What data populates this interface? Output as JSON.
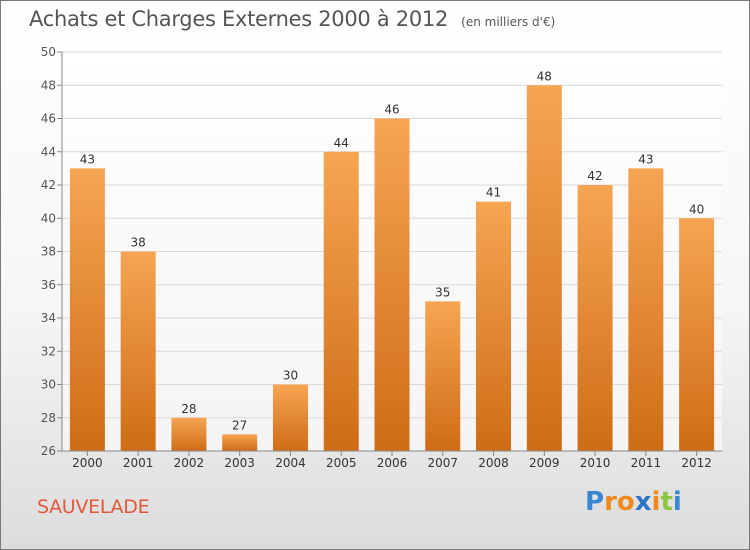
{
  "header": {
    "title": "Achats et Charges Externes 2000 à 2012",
    "subtitle": "(en milliers d'€)"
  },
  "footer": {
    "town": "SAUVELADE",
    "logo_letters": [
      "P",
      "r",
      "o",
      "x",
      "i",
      "t",
      "i"
    ],
    "logo_colors": [
      "#3a86d1",
      "#f08a1c",
      "#f08a1c",
      "#2f75c7",
      "#f08a1c",
      "#8cc63f",
      "#3a86d1"
    ]
  },
  "colors": {
    "bar_top": "#f6a552",
    "bar_bottom": "#cf6c16",
    "grid": "#d9d9d9",
    "axis": "#888888",
    "text": "#555555"
  },
  "chart_data": {
    "type": "bar",
    "title": "Achats et Charges Externes 2000 à 2012",
    "subtitle": "(en milliers d'€)",
    "categories": [
      "2000",
      "2001",
      "2002",
      "2003",
      "2004",
      "2005",
      "2006",
      "2007",
      "2008",
      "2009",
      "2010",
      "2011",
      "2012"
    ],
    "values": [
      43,
      38,
      28,
      27,
      30,
      44,
      46,
      35,
      41,
      48,
      42,
      43,
      40
    ],
    "ylim": [
      26,
      50
    ],
    "yticks": [
      26,
      28,
      30,
      32,
      34,
      36,
      38,
      40,
      42,
      44,
      46,
      48,
      50
    ],
    "grid": true,
    "data_labels": true
  }
}
